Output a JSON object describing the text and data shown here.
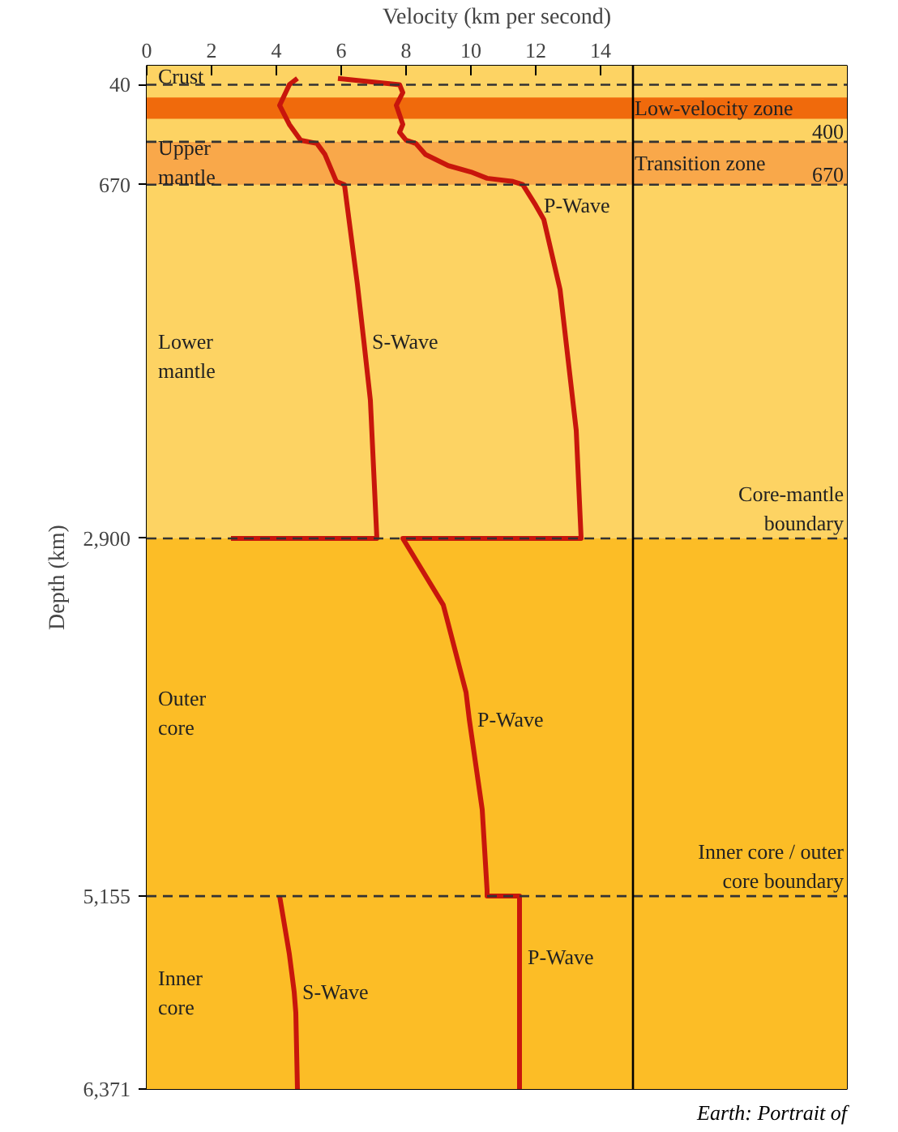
{
  "chart_data": {
    "type": "line",
    "xlabel": "Velocity (km per second)",
    "ylabel": "Depth (km)",
    "xlim": [
      0,
      21.6
    ],
    "xticks": [
      0,
      2,
      4,
      6,
      8,
      10,
      12,
      14
    ],
    "ylim": [
      6371,
      -80
    ],
    "yticks": [
      40,
      670,
      {
        "value": 2900,
        "label": "2,900"
      },
      {
        "value": 5155,
        "label": "5,155"
      },
      {
        "value": 6371,
        "label": "6,371"
      }
    ],
    "line_style": "solid",
    "series": [
      {
        "color": "#c8160c",
        "x": [
          5.9,
          7.8,
          7.9,
          7.7,
          7.9,
          7.8,
          8.0,
          8.3,
          8.6,
          9.3,
          10.0,
          10.5,
          11.3,
          11.6,
          12.0,
          12.25,
          12.75,
          13.25,
          13.4,
          7.9,
          9.15,
          9.85,
          9.95,
          10.35,
          10.5,
          10.5,
          11.5,
          11.5,
          11.5
        ],
        "values": [
          0,
          40,
          90,
          170,
          290,
          340,
          390,
          410,
          480,
          550,
          590,
          630,
          650,
          670,
          800,
          890,
          1330,
          2220,
          2900,
          2900,
          3320,
          3870,
          4040,
          4610,
          5120,
          5155,
          5155,
          5540,
          6371
        ]
      },
      {
        "color": "#c8160c",
        "x": [
          4.65,
          4.4,
          4.1,
          4.4,
          4.75,
          5.25,
          5.5,
          5.85,
          6.1,
          6.5,
          6.7,
          6.9,
          7.1,
          2.6,
          null,
          4.1,
          4.4,
          4.55,
          4.6,
          4.65
        ],
        "values": [
          0,
          40,
          170,
          290,
          390,
          410,
          480,
          650,
          670,
          1300,
          1660,
          2030,
          2900,
          2900,
          null,
          5155,
          5520,
          5760,
          5890,
          6371
        ]
      }
    ],
    "bands": [
      {
        "axis": "y",
        "from": -80,
        "to": 2900,
        "color": "#fdd363"
      },
      {
        "axis": "y",
        "from": 2900,
        "to": 6371,
        "color": "#fcbd26"
      },
      {
        "axis": "y",
        "from": 120,
        "to": 255,
        "color": "#f06a0c",
        "label": "Low-velocity zone"
      },
      {
        "axis": "y",
        "from": 400,
        "to": 670,
        "color": "#f9a84a",
        "label": "Transition zone"
      }
    ],
    "ref_lines": [
      {
        "axis": "y",
        "value": 40,
        "line_style": "dashed",
        "color": "#333333"
      },
      {
        "axis": "y",
        "value": 400,
        "label": "400",
        "line_style": "dashed",
        "color": "#333333"
      },
      {
        "axis": "y",
        "value": 670,
        "label": "670",
        "line_style": "dashed",
        "color": "#333333"
      },
      {
        "axis": "y",
        "value": 2900,
        "label": "Core-mantle\nboundary",
        "line_style": "dashed",
        "color": "#333333"
      },
      {
        "axis": "y",
        "value": 5155,
        "label": "Inner core / outer\ncore boundary",
        "line_style": "dashed",
        "color": "#333333"
      },
      {
        "axis": "x",
        "value": 15,
        "line_style": "solid",
        "color": "#000000"
      }
    ],
    "annotations": [
      {
        "text": "Crust",
        "x": 0.1,
        "y": -15
      },
      {
        "text": "Upper\nmantle",
        "x": 0.1,
        "y": 530
      },
      {
        "text": "Lower\nmantle",
        "x": 0.1,
        "y": 1750
      },
      {
        "text": "Outer\ncore",
        "x": 0.1,
        "y": 4000
      },
      {
        "text": "Inner\ncore",
        "x": 0.1,
        "y": 5765
      },
      {
        "text": "P-Wave",
        "x": 12.0,
        "y": 800
      },
      {
        "text": "S-Wave",
        "x": 6.7,
        "y": 1660
      },
      {
        "text": "P-Wave",
        "x": 9.95,
        "y": 4040
      },
      {
        "text": "P-Wave",
        "x": 11.5,
        "y": 5540
      },
      {
        "text": "S-Wave",
        "x": 4.55,
        "y": 5760
      },
      "Earth: Portrait of"
    ]
  }
}
